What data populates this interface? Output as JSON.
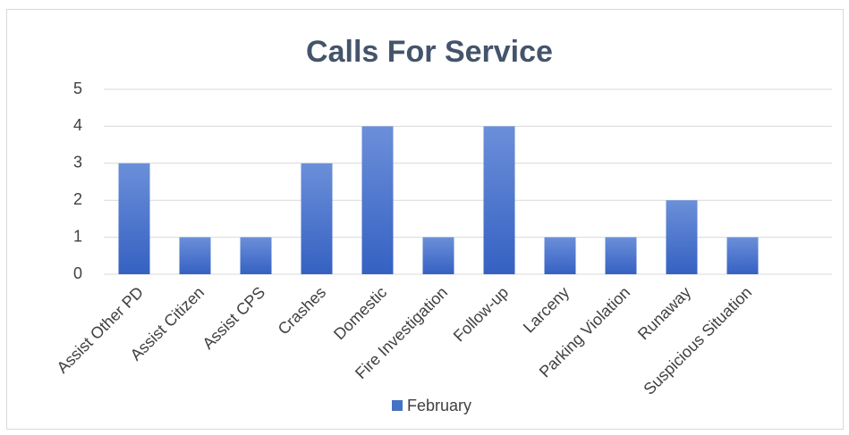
{
  "chart_data": {
    "type": "bar",
    "title": "Calls For Service",
    "categories": [
      "Assist Other PD",
      "Assist Citizen",
      "Assist CPS",
      "Crashes",
      "Domestic",
      "Fire Investigation",
      "Follow-up",
      "Larceny",
      "Parking Violation",
      "Runaway",
      "Suspicious Situation"
    ],
    "series": [
      {
        "name": "February",
        "color": "#4472c4",
        "values": [
          3,
          1,
          1,
          3,
          4,
          1,
          4,
          1,
          1,
          2,
          1
        ]
      }
    ],
    "ylim": [
      0,
      5
    ],
    "yticks": [
      0,
      1,
      2,
      3,
      4,
      5
    ],
    "grid": true,
    "legend": "bottom"
  }
}
